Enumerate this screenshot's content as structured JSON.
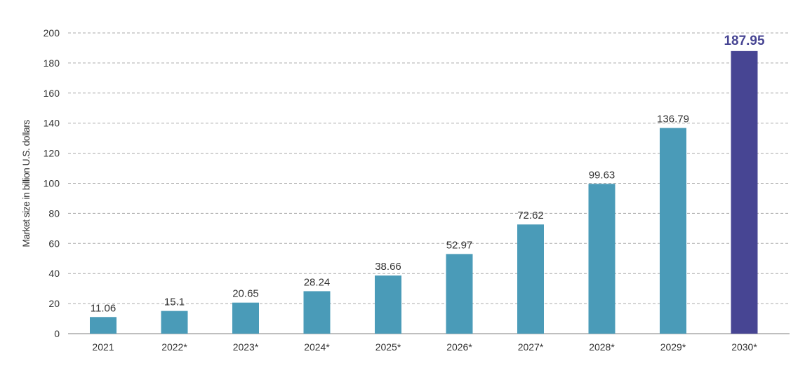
{
  "chart_data": {
    "type": "bar",
    "title": "",
    "xlabel": "",
    "ylabel": "Market size in billion U.S. dollars",
    "categories": [
      "2021",
      "2022*",
      "2023*",
      "2024*",
      "2025*",
      "2026*",
      "2027*",
      "2028*",
      "2029*",
      "2030*"
    ],
    "values": [
      11.06,
      15.1,
      20.65,
      28.24,
      38.66,
      52.97,
      72.62,
      99.63,
      136.79,
      187.95
    ],
    "value_labels": [
      "11.06",
      "15.1",
      "20.65",
      "28.24",
      "38.66",
      "52.97",
      "72.62",
      "99.63",
      "136.79",
      "187.95"
    ],
    "yticks": [
      0,
      20,
      40,
      60,
      80,
      100,
      120,
      140,
      160,
      180,
      200
    ],
    "ylim": [
      0,
      200
    ],
    "grid": true,
    "highlight_index": 9,
    "colors": {
      "bar": "#4a9bb8",
      "highlight": "#474593",
      "text": "#333333",
      "grid": "#aaaaaa",
      "axis": "#999999"
    }
  }
}
